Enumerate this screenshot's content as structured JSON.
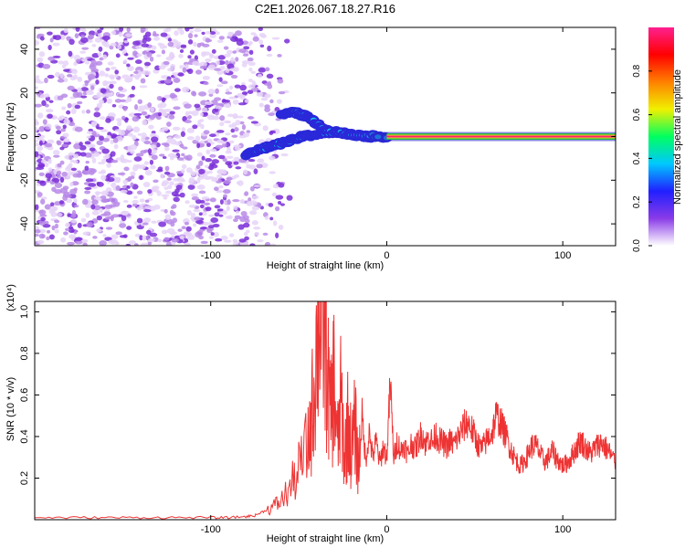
{
  "figure": {
    "title": "C2E1.2026.067.18.27.R16"
  },
  "chart_data": [
    {
      "type": "heatmap",
      "name": "spectrogram",
      "xlabel": "Height of straight line (km)",
      "ylabel": "Frequency (Hz)",
      "xlim": [
        -200,
        130
      ],
      "ylim": [
        -50,
        50
      ],
      "xticks": [
        -100,
        0,
        100
      ],
      "xtick_labels": [
        "-100",
        "0",
        "100"
      ],
      "yticks": [
        -40,
        -20,
        0,
        20,
        40
      ],
      "ytick_labels": [
        "-40",
        "-20",
        "0",
        "20",
        "40"
      ],
      "noise_region_x": [
        -200,
        -65
      ],
      "carrier_frequency_hz": 0,
      "carrier_start_x": 0,
      "trace_upper": [
        [
          -60,
          10
        ],
        [
          -52,
          11
        ],
        [
          -45,
          9
        ],
        [
          -40,
          6
        ],
        [
          -35,
          3
        ],
        [
          -28,
          2
        ],
        [
          -20,
          1
        ],
        [
          -10,
          0
        ],
        [
          0,
          0
        ]
      ],
      "trace_lower": [
        [
          -80,
          -8
        ],
        [
          -72,
          -6
        ],
        [
          -64,
          -4
        ],
        [
          -55,
          -2
        ],
        [
          -48,
          0
        ],
        [
          -40,
          1
        ],
        [
          -32,
          2
        ],
        [
          -20,
          1
        ],
        [
          -5,
          0
        ]
      ],
      "colorbar": {
        "label": "Normalized spectral amplitude",
        "range": [
          0,
          1
        ],
        "ticks": [
          0.0,
          0.2,
          0.4,
          0.6,
          0.8
        ],
        "tick_labels": [
          "0.0",
          "0.2",
          "0.4",
          "0.6",
          "0.8"
        ],
        "colors": [
          "#ffffff",
          "#8a3be8",
          "#2020ff",
          "#00c8ff",
          "#00ff60",
          "#f0f000",
          "#ff8000",
          "#ff0000",
          "#ff2090"
        ]
      }
    },
    {
      "type": "line",
      "name": "snr",
      "xlabel": "Height of straight line (km)",
      "ylabel": "SNR (10 * v/v)",
      "scale_label": "(x10⁴)",
      "xlim": [
        -200,
        130
      ],
      "ylim": [
        0,
        1.05
      ],
      "xticks": [
        -100,
        0,
        100
      ],
      "xtick_labels": [
        "-100",
        "0",
        "100"
      ],
      "yticks": [
        0.2,
        0.4,
        0.6,
        0.8,
        1.0
      ],
      "ytick_labels": [
        "0.2",
        "0.4",
        "0.6",
        "0.8",
        "1.0"
      ],
      "series": [
        {
          "name": "SNR",
          "color": "#ee3333",
          "x": [
            -200,
            -180,
            -160,
            -140,
            -120,
            -100,
            -90,
            -80,
            -75,
            -70,
            -65,
            -60,
            -55,
            -50,
            -45,
            -42,
            -40,
            -38,
            -36,
            -34,
            -32,
            -30,
            -28,
            -26,
            -24,
            -22,
            -20,
            -18,
            -16,
            -14,
            -12,
            -10,
            -8,
            -6,
            -4,
            -2,
            0,
            2,
            4,
            6,
            8,
            10,
            12,
            14,
            16,
            18,
            20,
            22,
            24,
            26,
            28,
            30,
            32,
            34,
            36,
            38,
            40,
            42,
            44,
            46,
            48,
            50,
            52,
            54,
            56,
            58,
            60,
            62,
            64,
            66,
            68,
            70,
            72,
            74,
            76,
            78,
            80,
            82,
            84,
            86,
            88,
            90,
            92,
            94,
            96,
            98,
            100,
            102,
            104,
            106,
            108,
            110,
            112,
            114,
            116,
            118,
            120,
            122,
            124,
            126,
            128,
            130
          ],
          "y": [
            0.01,
            0.01,
            0.01,
            0.01,
            0.01,
            0.01,
            0.01,
            0.015,
            0.02,
            0.04,
            0.06,
            0.09,
            0.15,
            0.24,
            0.35,
            0.55,
            0.82,
            1.04,
            0.95,
            0.75,
            0.48,
            0.68,
            0.35,
            0.58,
            0.3,
            0.48,
            0.32,
            0.45,
            0.25,
            0.5,
            0.28,
            0.42,
            0.3,
            0.38,
            0.27,
            0.35,
            0.3,
            0.66,
            0.29,
            0.38,
            0.33,
            0.36,
            0.31,
            0.37,
            0.34,
            0.38,
            0.42,
            0.36,
            0.4,
            0.37,
            0.41,
            0.38,
            0.37,
            0.35,
            0.38,
            0.36,
            0.39,
            0.42,
            0.45,
            0.47,
            0.44,
            0.4,
            0.36,
            0.34,
            0.37,
            0.4,
            0.42,
            0.5,
            0.48,
            0.44,
            0.4,
            0.35,
            0.31,
            0.28,
            0.26,
            0.28,
            0.31,
            0.35,
            0.36,
            0.34,
            0.3,
            0.28,
            0.3,
            0.33,
            0.3,
            0.28,
            0.26,
            0.27,
            0.29,
            0.32,
            0.35,
            0.38,
            0.36,
            0.33,
            0.32,
            0.34,
            0.36,
            0.37,
            0.35,
            0.33,
            0.3,
            0.28
          ]
        }
      ]
    }
  ]
}
